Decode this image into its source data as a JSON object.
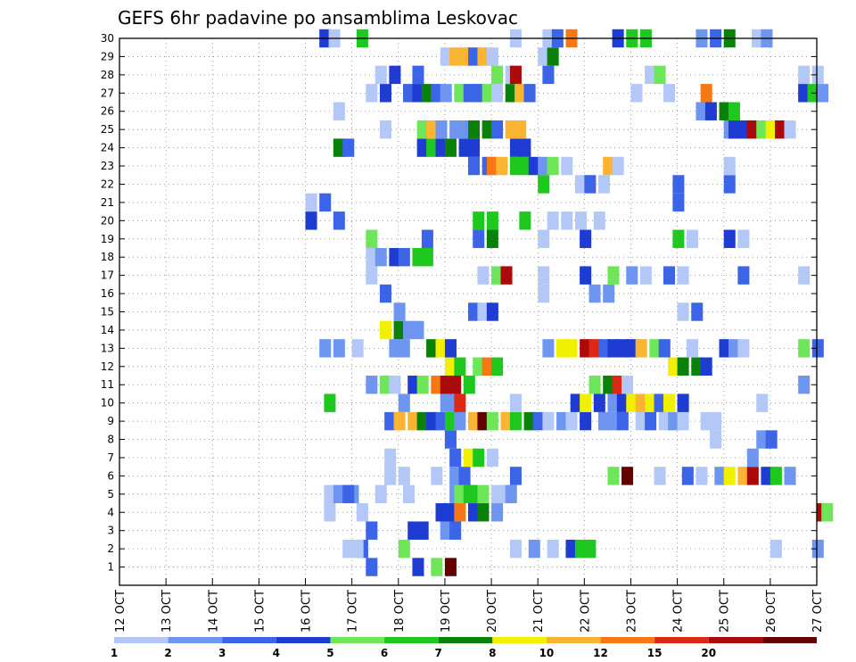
{
  "chart_data": {
    "type": "heatmap",
    "title": "GEFS 6hr padavine po ansamblima Leskovac",
    "xlabel": "",
    "ylabel": "",
    "x_ticks": [
      "12 OCT",
      "13 OCT",
      "14 OCT",
      "15 OCT",
      "16 OCT",
      "17 OCT",
      "18 OCT",
      "19 OCT",
      "20 OCT",
      "21 OCT",
      "22 OCT",
      "23 OCT",
      "24 OCT",
      "25 OCT",
      "26 OCT",
      "27 OCT"
    ],
    "y_ticks": [
      "1",
      "2",
      "3",
      "4",
      "5",
      "6",
      "7",
      "8",
      "9",
      "10",
      "11",
      "12",
      "13",
      "14",
      "15",
      "16",
      "17",
      "18",
      "19",
      "20",
      "21",
      "22",
      "23",
      "24",
      "25",
      "26",
      "27",
      "28",
      "29",
      "30"
    ],
    "steps_per_day": 4,
    "x_range": [
      "12 OCT",
      "27 OCT"
    ],
    "y_range": [
      0,
      30
    ],
    "grid": true,
    "colorbar": {
      "labels": [
        "1",
        "2",
        "3",
        "4",
        "5",
        "6",
        "7",
        "8",
        "10",
        "12",
        "15",
        "20"
      ],
      "colors": [
        "#b4c8f8",
        "#6e96f0",
        "#3c64e6",
        "#1e3cd2",
        "#6ee65a",
        "#1ec81e",
        "#0a820a",
        "#f0f000",
        "#fab432",
        "#f57814",
        "#dc2814",
        "#aa0a0a",
        "#640000"
      ]
    },
    "cells": [
      [
        18.3,
        0,
        3
      ],
      [
        18.7,
        0,
        4
      ],
      [
        19.0,
        0,
        12
      ],
      [
        17.3,
        0,
        2
      ],
      [
        17.1,
        1,
        2
      ],
      [
        16.8,
        1,
        0
      ],
      [
        17.0,
        1,
        0
      ],
      [
        18.0,
        1,
        4
      ],
      [
        20.4,
        1,
        0
      ],
      [
        21.2,
        1,
        0
      ],
      [
        20.8,
        1,
        1
      ],
      [
        21.6,
        1,
        3
      ],
      [
        21.8,
        1,
        5
      ],
      [
        22.0,
        1,
        5
      ],
      [
        26.0,
        1,
        0
      ],
      [
        26.9,
        1,
        1
      ],
      [
        17.3,
        2,
        2
      ],
      [
        18.2,
        2,
        3
      ],
      [
        18.4,
        2,
        3
      ],
      [
        17.1,
        3,
        0
      ],
      [
        16.4,
        3,
        0
      ],
      [
        16.4,
        4,
        0
      ],
      [
        16.6,
        4,
        1
      ],
      [
        16.9,
        4,
        1
      ],
      [
        17.5,
        4,
        0
      ],
      [
        17.7,
        5,
        0
      ],
      [
        18.0,
        5,
        0
      ],
      [
        18.1,
        4,
        0
      ],
      [
        19.1,
        4,
        1
      ],
      [
        19.2,
        4,
        4
      ],
      [
        19.4,
        4,
        5
      ],
      [
        19.5,
        4,
        5
      ],
      [
        19.7,
        4,
        4
      ],
      [
        20.0,
        4,
        0
      ],
      [
        20.2,
        4,
        0
      ],
      [
        20.3,
        4,
        1
      ],
      [
        18.8,
        3,
        3
      ],
      [
        19.0,
        3,
        3
      ],
      [
        19.2,
        3,
        9
      ],
      [
        19.5,
        3,
        3
      ],
      [
        19.7,
        3,
        6
      ],
      [
        20.0,
        3,
        1
      ],
      [
        18.9,
        2,
        1
      ],
      [
        19.1,
        2,
        2
      ],
      [
        27.0,
        3,
        11
      ],
      [
        27.1,
        3,
        4
      ],
      [
        16.8,
        4,
        2
      ],
      [
        17.7,
        5,
        0
      ],
      [
        18.7,
        5,
        0
      ],
      [
        19.1,
        5,
        1
      ],
      [
        19.3,
        5,
        2
      ],
      [
        20.4,
        5,
        2
      ],
      [
        22.5,
        5,
        4
      ],
      [
        22.8,
        5,
        12
      ],
      [
        23.5,
        5,
        0
      ],
      [
        24.1,
        5,
        2
      ],
      [
        24.4,
        5,
        0
      ],
      [
        24.8,
        5,
        1
      ],
      [
        25.0,
        5,
        7
      ],
      [
        25.3,
        5,
        8
      ],
      [
        25.5,
        5,
        11
      ],
      [
        25.8,
        5,
        3
      ],
      [
        26.0,
        5,
        5
      ],
      [
        26.3,
        5,
        1
      ],
      [
        17.7,
        6,
        0
      ],
      [
        19.1,
        6,
        2
      ],
      [
        19.4,
        6,
        7
      ],
      [
        19.6,
        6,
        5
      ],
      [
        19.9,
        6,
        0
      ],
      [
        19.0,
        7,
        2
      ],
      [
        24.7,
        7,
        0
      ],
      [
        25.7,
        7,
        1
      ],
      [
        25.9,
        7,
        2
      ],
      [
        25.5,
        6,
        1
      ],
      [
        17.7,
        8,
        2
      ],
      [
        17.9,
        8,
        8
      ],
      [
        18.2,
        8,
        8
      ],
      [
        18.4,
        8,
        6
      ],
      [
        18.6,
        8,
        3
      ],
      [
        18.8,
        8,
        2
      ],
      [
        19.0,
        8,
        5
      ],
      [
        19.2,
        8,
        1
      ],
      [
        19.5,
        8,
        8
      ],
      [
        19.7,
        8,
        12
      ],
      [
        19.9,
        8,
        4
      ],
      [
        20.2,
        8,
        8
      ],
      [
        20.4,
        8,
        5
      ],
      [
        20.7,
        8,
        6
      ],
      [
        20.9,
        8,
        2
      ],
      [
        21.1,
        8,
        0
      ],
      [
        21.4,
        8,
        1
      ],
      [
        21.6,
        8,
        0
      ],
      [
        21.9,
        8,
        3
      ],
      [
        22.3,
        8,
        1
      ],
      [
        22.5,
        8,
        1
      ],
      [
        22.7,
        8,
        2
      ],
      [
        23.1,
        8,
        0
      ],
      [
        23.3,
        8,
        2
      ],
      [
        23.6,
        8,
        0
      ],
      [
        23.8,
        8,
        1
      ],
      [
        24.0,
        8,
        0
      ],
      [
        24.5,
        8,
        0
      ],
      [
        24.7,
        8,
        0
      ],
      [
        16.4,
        9,
        5
      ],
      [
        18.0,
        9,
        1
      ],
      [
        18.9,
        9,
        1
      ],
      [
        19.1,
        9,
        1
      ],
      [
        19.2,
        9,
        10
      ],
      [
        20.4,
        9,
        0
      ],
      [
        21.7,
        9,
        3
      ],
      [
        21.9,
        9,
        7
      ],
      [
        22.2,
        9,
        3
      ],
      [
        22.5,
        9,
        1
      ],
      [
        22.7,
        9,
        3
      ],
      [
        22.9,
        9,
        7
      ],
      [
        23.1,
        9,
        8
      ],
      [
        23.3,
        9,
        7
      ],
      [
        23.5,
        9,
        2
      ],
      [
        23.7,
        9,
        7
      ],
      [
        24.0,
        9,
        3
      ],
      [
        25.7,
        9,
        0
      ],
      [
        17.3,
        10,
        1
      ],
      [
        17.6,
        10,
        4
      ],
      [
        17.8,
        10,
        0
      ],
      [
        18.2,
        10,
        3
      ],
      [
        18.4,
        10,
        4
      ],
      [
        18.7,
        10,
        9
      ],
      [
        18.9,
        10,
        11
      ],
      [
        19.1,
        10,
        11
      ],
      [
        19.4,
        10,
        5
      ],
      [
        22.1,
        10,
        4
      ],
      [
        22.4,
        10,
        6
      ],
      [
        22.6,
        10,
        10
      ],
      [
        22.8,
        10,
        0
      ],
      [
        26.6,
        10,
        1
      ],
      [
        19.0,
        11,
        7
      ],
      [
        19.2,
        11,
        5
      ],
      [
        19.6,
        11,
        4
      ],
      [
        19.8,
        11,
        9
      ],
      [
        20.0,
        11,
        5
      ],
      [
        23.8,
        11,
        7
      ],
      [
        24.0,
        11,
        6
      ],
      [
        24.3,
        11,
        6
      ],
      [
        24.5,
        11,
        3
      ],
      [
        16.3,
        12,
        1
      ],
      [
        16.6,
        12,
        1
      ],
      [
        17.0,
        12,
        0
      ],
      [
        17.8,
        12,
        1
      ],
      [
        18.0,
        12,
        1
      ],
      [
        18.6,
        12,
        6
      ],
      [
        18.8,
        12,
        7
      ],
      [
        19.0,
        12,
        3
      ],
      [
        21.1,
        12,
        1
      ],
      [
        21.4,
        12,
        7
      ],
      [
        21.6,
        12,
        7
      ],
      [
        21.9,
        12,
        11
      ],
      [
        22.1,
        12,
        10
      ],
      [
        22.3,
        12,
        2
      ],
      [
        22.5,
        12,
        3
      ],
      [
        22.7,
        12,
        3
      ],
      [
        22.9,
        12,
        3
      ],
      [
        23.1,
        12,
        8
      ],
      [
        23.4,
        12,
        4
      ],
      [
        23.6,
        12,
        2
      ],
      [
        24.2,
        12,
        0
      ],
      [
        24.9,
        12,
        3
      ],
      [
        25.1,
        12,
        1
      ],
      [
        25.3,
        12,
        0
      ],
      [
        26.6,
        12,
        4
      ],
      [
        26.9,
        12,
        2
      ],
      [
        17.6,
        13,
        7
      ],
      [
        17.9,
        13,
        6
      ],
      [
        18.1,
        13,
        1
      ],
      [
        18.3,
        13,
        1
      ],
      [
        17.9,
        14,
        1
      ],
      [
        19.5,
        14,
        2
      ],
      [
        19.7,
        14,
        0
      ],
      [
        19.9,
        14,
        3
      ],
      [
        24.0,
        14,
        0
      ],
      [
        24.3,
        14,
        2
      ],
      [
        17.6,
        15,
        2
      ],
      [
        21.0,
        15,
        0
      ],
      [
        22.1,
        15,
        1
      ],
      [
        22.4,
        15,
        1
      ],
      [
        17.3,
        16,
        0
      ],
      [
        19.7,
        16,
        0
      ],
      [
        20.0,
        16,
        4
      ],
      [
        20.2,
        16,
        11
      ],
      [
        21.0,
        16,
        0
      ],
      [
        21.9,
        16,
        3
      ],
      [
        22.5,
        16,
        4
      ],
      [
        22.9,
        16,
        1
      ],
      [
        23.2,
        16,
        0
      ],
      [
        23.7,
        16,
        2
      ],
      [
        24.0,
        16,
        0
      ],
      [
        25.3,
        16,
        2
      ],
      [
        26.6,
        16,
        0
      ],
      [
        17.3,
        17,
        0
      ],
      [
        17.5,
        17,
        1
      ],
      [
        17.8,
        17,
        3
      ],
      [
        18.0,
        17,
        2
      ],
      [
        18.3,
        17,
        5
      ],
      [
        18.5,
        17,
        5
      ],
      [
        17.3,
        18,
        4
      ],
      [
        18.5,
        18,
        2
      ],
      [
        19.6,
        18,
        2
      ],
      [
        19.9,
        18,
        6
      ],
      [
        21.0,
        18,
        0
      ],
      [
        21.9,
        18,
        3
      ],
      [
        23.9,
        18,
        5
      ],
      [
        24.2,
        18,
        0
      ],
      [
        25.0,
        18,
        3
      ],
      [
        25.3,
        18,
        0
      ],
      [
        16.0,
        19,
        3
      ],
      [
        16.6,
        19,
        2
      ],
      [
        16.0,
        20,
        0
      ],
      [
        16.3,
        20,
        2
      ],
      [
        19.6,
        19,
        5
      ],
      [
        19.9,
        19,
        5
      ],
      [
        20.6,
        19,
        5
      ],
      [
        21.2,
        19,
        0
      ],
      [
        21.5,
        19,
        0
      ],
      [
        21.8,
        19,
        0
      ],
      [
        22.2,
        19,
        0
      ],
      [
        23.9,
        20,
        2
      ],
      [
        21.0,
        21,
        5
      ],
      [
        21.8,
        21,
        0
      ],
      [
        22.0,
        21,
        2
      ],
      [
        22.3,
        21,
        0
      ],
      [
        23.9,
        21,
        2
      ],
      [
        25.0,
        21,
        2
      ],
      [
        19.5,
        22,
        2
      ],
      [
        19.8,
        22,
        2
      ],
      [
        19.9,
        22,
        9
      ],
      [
        20.1,
        22,
        8
      ],
      [
        20.4,
        22,
        5
      ],
      [
        20.6,
        22,
        5
      ],
      [
        20.8,
        22,
        3
      ],
      [
        21.0,
        22,
        1
      ],
      [
        21.2,
        22,
        4
      ],
      [
        21.5,
        22,
        0
      ],
      [
        22.4,
        22,
        8
      ],
      [
        22.6,
        22,
        0
      ],
      [
        25.0,
        22,
        0
      ],
      [
        16.6,
        23,
        6
      ],
      [
        16.8,
        23,
        2
      ],
      [
        18.4,
        23,
        3
      ],
      [
        18.6,
        23,
        5
      ],
      [
        18.8,
        23,
        3
      ],
      [
        19.0,
        23,
        6
      ],
      [
        19.3,
        23,
        3
      ],
      [
        19.5,
        23,
        3
      ],
      [
        20.4,
        23,
        3
      ],
      [
        20.6,
        23,
        3
      ],
      [
        17.6,
        24,
        0
      ],
      [
        18.4,
        24,
        4
      ],
      [
        18.6,
        24,
        8
      ],
      [
        18.8,
        24,
        1
      ],
      [
        19.1,
        24,
        1
      ],
      [
        19.3,
        24,
        1
      ],
      [
        19.5,
        24,
        6
      ],
      [
        19.8,
        24,
        6
      ],
      [
        20.0,
        24,
        2
      ],
      [
        20.3,
        24,
        8
      ],
      [
        20.5,
        24,
        8
      ],
      [
        25.0,
        24,
        1
      ],
      [
        25.1,
        24,
        3
      ],
      [
        25.3,
        24,
        3
      ],
      [
        25.5,
        24,
        11
      ],
      [
        25.7,
        24,
        4
      ],
      [
        25.9,
        24,
        7
      ],
      [
        26.1,
        24,
        11
      ],
      [
        26.3,
        24,
        0
      ],
      [
        16.6,
        25,
        0
      ],
      [
        24.4,
        25,
        1
      ],
      [
        24.6,
        25,
        3
      ],
      [
        24.9,
        25,
        6
      ],
      [
        25.1,
        25,
        5
      ],
      [
        17.3,
        26,
        0
      ],
      [
        17.6,
        26,
        3
      ],
      [
        18.1,
        26,
        2
      ],
      [
        18.3,
        26,
        3
      ],
      [
        18.5,
        26,
        6
      ],
      [
        18.7,
        26,
        2
      ],
      [
        18.9,
        26,
        1
      ],
      [
        19.2,
        26,
        4
      ],
      [
        19.4,
        26,
        2
      ],
      [
        19.6,
        26,
        2
      ],
      [
        19.8,
        26,
        4
      ],
      [
        20.0,
        26,
        0
      ],
      [
        20.3,
        26,
        6
      ],
      [
        20.5,
        26,
        8
      ],
      [
        20.7,
        26,
        2
      ],
      [
        23.0,
        26,
        0
      ],
      [
        23.7,
        26,
        0
      ],
      [
        24.5,
        26,
        9
      ],
      [
        26.6,
        26,
        3
      ],
      [
        26.8,
        26,
        5
      ],
      [
        27.0,
        26,
        1
      ],
      [
        17.5,
        27,
        0
      ],
      [
        17.8,
        27,
        3
      ],
      [
        18.3,
        27,
        2
      ],
      [
        20.0,
        27,
        4
      ],
      [
        20.3,
        27,
        0
      ],
      [
        20.4,
        27,
        11
      ],
      [
        21.1,
        27,
        2
      ],
      [
        23.3,
        27,
        0
      ],
      [
        23.5,
        27,
        4
      ],
      [
        26.6,
        27,
        0
      ],
      [
        26.9,
        27,
        0
      ],
      [
        18.9,
        28,
        0
      ],
      [
        19.1,
        28,
        8
      ],
      [
        19.3,
        28,
        8
      ],
      [
        19.5,
        28,
        2
      ],
      [
        19.7,
        28,
        8
      ],
      [
        19.9,
        28,
        0
      ],
      [
        21.0,
        28,
        0
      ],
      [
        21.2,
        28,
        6
      ],
      [
        16.3,
        29,
        3
      ],
      [
        16.5,
        29,
        0
      ],
      [
        17.1,
        29,
        5
      ],
      [
        20.4,
        29,
        0
      ],
      [
        21.1,
        29,
        0
      ],
      [
        21.3,
        29,
        2
      ],
      [
        21.6,
        29,
        9
      ],
      [
        22.6,
        29,
        3
      ],
      [
        22.9,
        29,
        5
      ],
      [
        23.2,
        29,
        5
      ],
      [
        24.4,
        29,
        1
      ],
      [
        24.7,
        29,
        2
      ],
      [
        25.0,
        29,
        6
      ],
      [
        25.6,
        29,
        0
      ],
      [
        25.8,
        29,
        1
      ]
    ]
  }
}
